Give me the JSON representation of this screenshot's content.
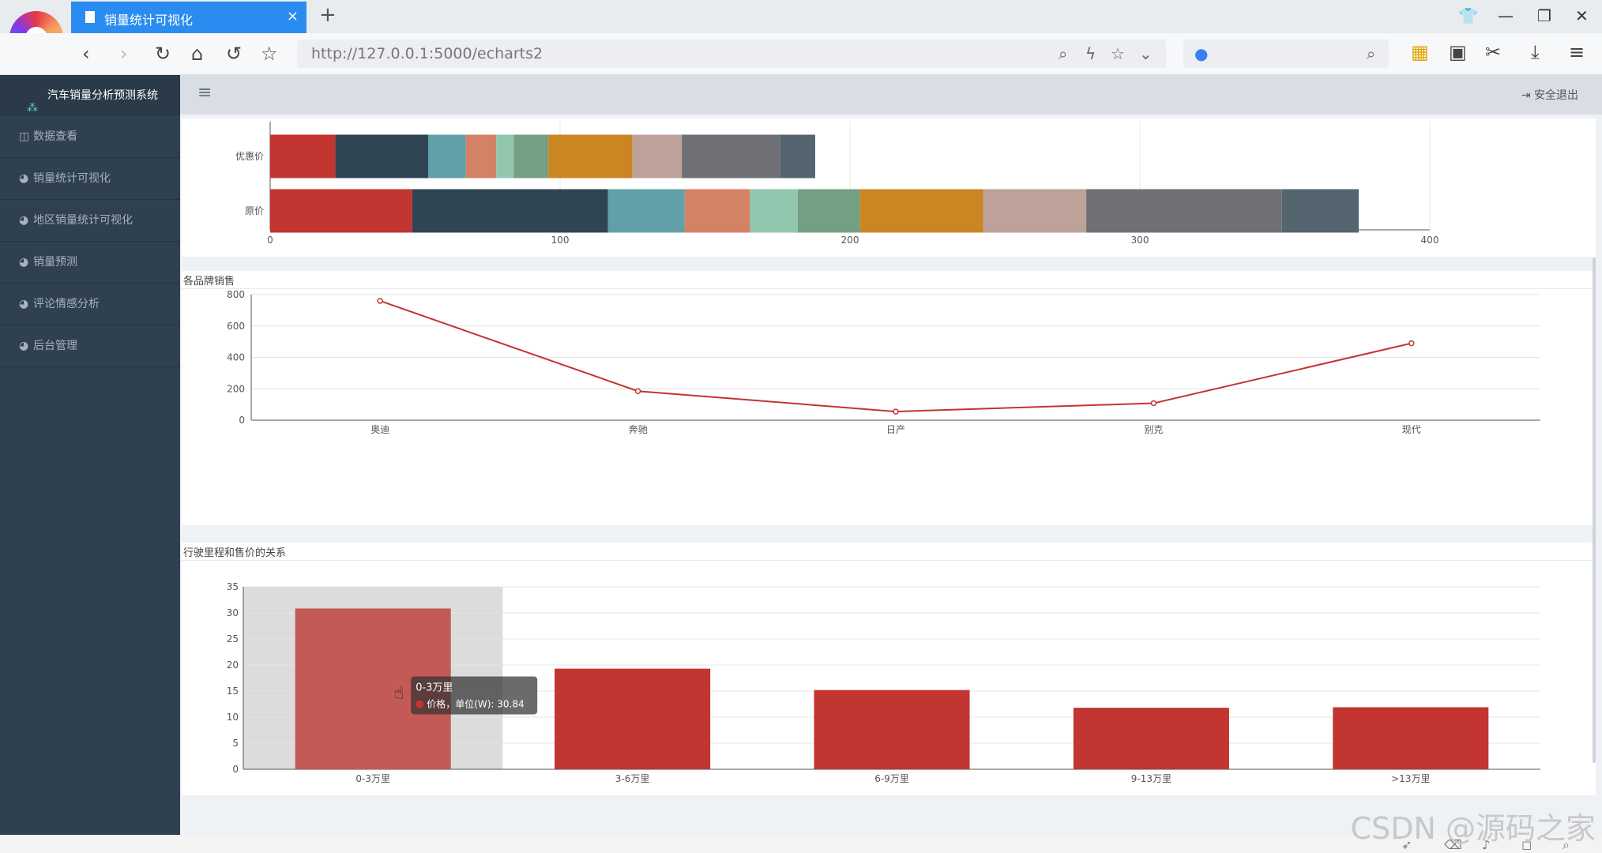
{
  "browser": {
    "tab_title": "销量统计可视化",
    "url": "http://127.0.0.1:5000/echarts2"
  },
  "app": {
    "brand": "汽车销量分析预测系统",
    "logout": "安全退出",
    "sidebar": [
      {
        "label": "数据查看",
        "icon": "table-icon"
      },
      {
        "label": "销量统计可视化",
        "icon": "dashboard-icon"
      },
      {
        "label": "地区销量统计可视化",
        "icon": "dashboard-icon"
      },
      {
        "label": "销量预测",
        "icon": "dashboard-icon"
      },
      {
        "label": "评论情感分析",
        "icon": "dashboard-icon"
      },
      {
        "label": "后台管理",
        "icon": "dashboard-icon"
      }
    ]
  },
  "chart_data": [
    {
      "type": "bar",
      "orientation": "horizontal",
      "stacked": true,
      "categories": [
        "原价",
        "优惠价"
      ],
      "xlim": [
        0,
        400
      ],
      "xticks": [
        0,
        100,
        200,
        300,
        400
      ],
      "series": [
        {
          "color": "#c23531",
          "values": [
            49,
            22.5
          ]
        },
        {
          "color": "#2f4554",
          "values": [
            67.5,
            32
          ]
        },
        {
          "color": "#61a0a8",
          "values": [
            26.5,
            13
          ]
        },
        {
          "color": "#d48265",
          "values": [
            22.5,
            10.5
          ]
        },
        {
          "color": "#91c7ae",
          "values": [
            16.5,
            6
          ]
        },
        {
          "color": "#749f83",
          "values": [
            21.5,
            12
          ]
        },
        {
          "color": "#ca8622",
          "values": [
            42.5,
            29
          ]
        },
        {
          "color": "#bda29a",
          "values": [
            35.5,
            17
          ]
        },
        {
          "color": "#6e7074",
          "values": [
            67.5,
            34
          ]
        },
        {
          "color": "#546570",
          "values": [
            26.5,
            12
          ]
        }
      ]
    },
    {
      "type": "line",
      "title": "各品牌销售",
      "categories": [
        "奥迪",
        "奔驰",
        "日产",
        "别克",
        "现代"
      ],
      "values": [
        760,
        185,
        55,
        108,
        490
      ],
      "ylim": [
        0,
        800
      ],
      "yticks": [
        0,
        200,
        400,
        600,
        800
      ],
      "color": "#c23531"
    },
    {
      "type": "bar",
      "title": "行驶里程和售价的关系",
      "categories": [
        "0-3万里",
        "3-6万里",
        "6-9万里",
        "9-13万里",
        ">13万里"
      ],
      "values": [
        30.84,
        19.3,
        15.2,
        11.8,
        11.9
      ],
      "ylim": [
        0,
        35
      ],
      "yticks": [
        0,
        5,
        10,
        15,
        20,
        25,
        30,
        35
      ],
      "color": "#c23531",
      "highlight_index": 0,
      "tooltip": {
        "title": "0-3万里",
        "text": "价格，单位(W): 30.84"
      }
    }
  ],
  "watermark": "CSDN @源码之家"
}
